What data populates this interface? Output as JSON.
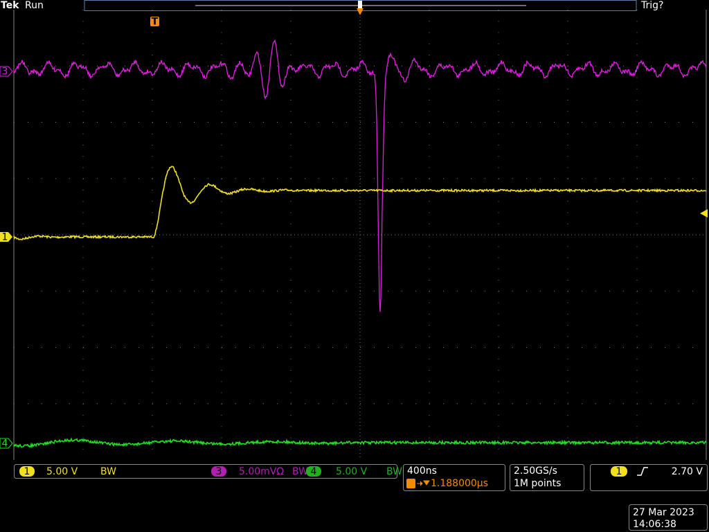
{
  "header": {
    "brand": "Tek",
    "status": "Run",
    "trigger_state": "Trig?"
  },
  "markers": {
    "trigger_position": "T",
    "channel_3": "3",
    "channel_1": "1",
    "channel_4": "4"
  },
  "footer": {
    "channel_1": {
      "number": "1",
      "scale": "5.00 V",
      "bw": "BW"
    },
    "channel_3": {
      "number": "3",
      "scale": "5.00mVΩ",
      "bw": "BW"
    },
    "channel_4": {
      "number": "4",
      "scale": "5.00 V",
      "bw": "BW"
    },
    "timebase": {
      "scale": "400ns",
      "delay": "1.188000µs"
    },
    "acquisition": {
      "sample_rate": "2.50GS/s",
      "record_length": "1M points"
    },
    "trigger": {
      "source": "1",
      "level": "2.70 V"
    },
    "date": "27 Mar 2023",
    "time": "14:06:38"
  }
}
